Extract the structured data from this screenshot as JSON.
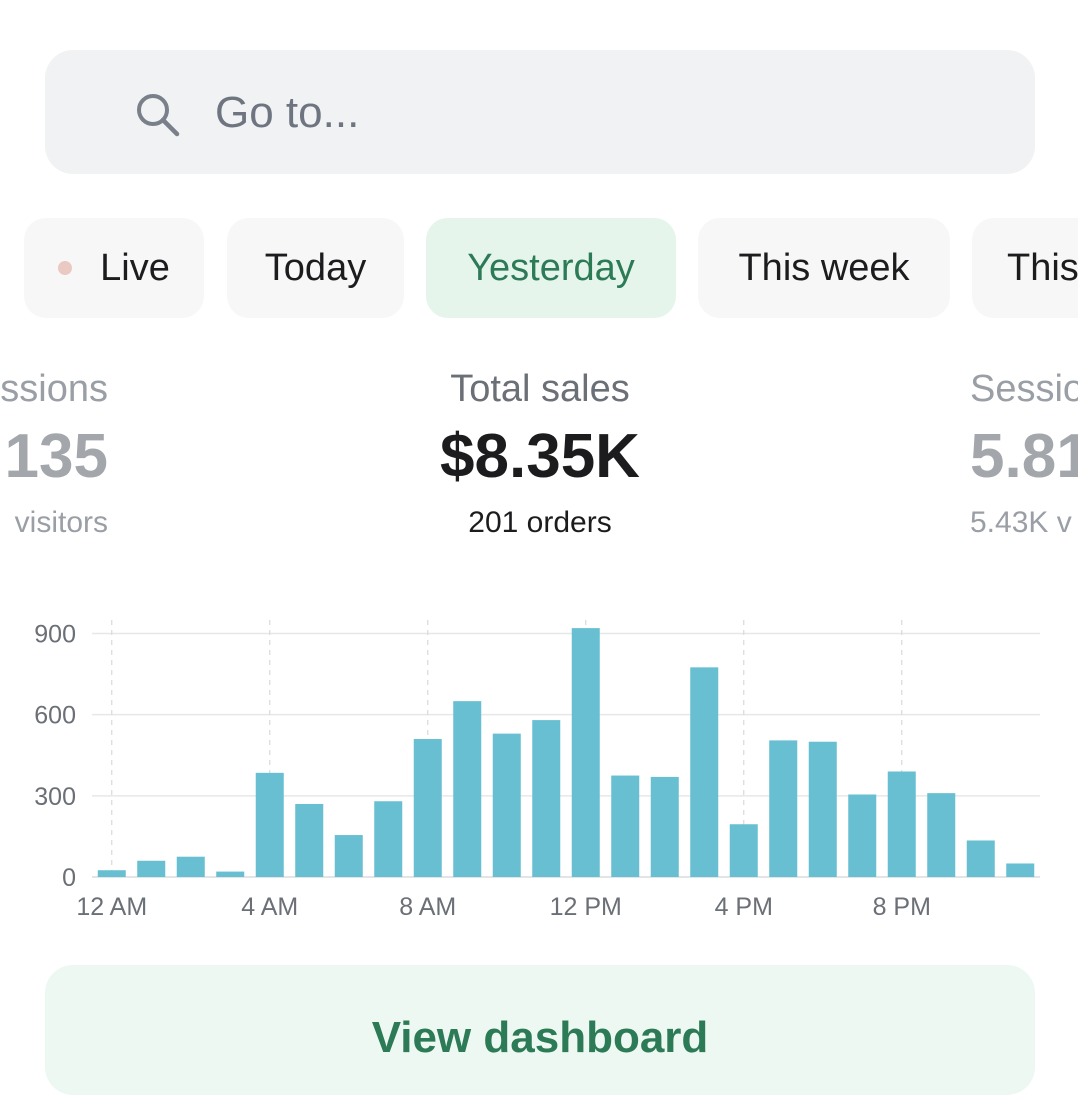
{
  "search": {
    "placeholder": "Go to..."
  },
  "tabs": [
    {
      "label": "Live"
    },
    {
      "label": "Today"
    },
    {
      "label": "Yesterday"
    },
    {
      "label": "This week"
    },
    {
      "label": "This"
    }
  ],
  "metrics": {
    "left": {
      "label": "ssions",
      "value": "135",
      "sub": "visitors"
    },
    "center": {
      "label": "Total sales",
      "value": "$8.35K",
      "sub": "201 orders"
    },
    "right": {
      "label": "Sessio",
      "value": "5.81",
      "sub": "5.43K v"
    }
  },
  "colors": {
    "accent": "#2d7a57",
    "active_tab_bg": "#e5f5ec",
    "bar": "#67bfd1",
    "live_dot": "#e9c9c2"
  },
  "chart_data": {
    "type": "bar",
    "x_tick_labels": [
      "12 AM",
      "4 AM",
      "8 AM",
      "12 PM",
      "4 PM",
      "8 PM"
    ],
    "y_tick_labels": [
      "0",
      "300",
      "600",
      "900"
    ],
    "ylim": [
      0,
      950
    ],
    "grid": true,
    "values": [
      25,
      60,
      75,
      20,
      385,
      270,
      155,
      280,
      510,
      650,
      530,
      580,
      920,
      375,
      370,
      775,
      195,
      505,
      500,
      305,
      390,
      310,
      135,
      50
    ]
  },
  "cta": {
    "label": "View dashboard"
  }
}
